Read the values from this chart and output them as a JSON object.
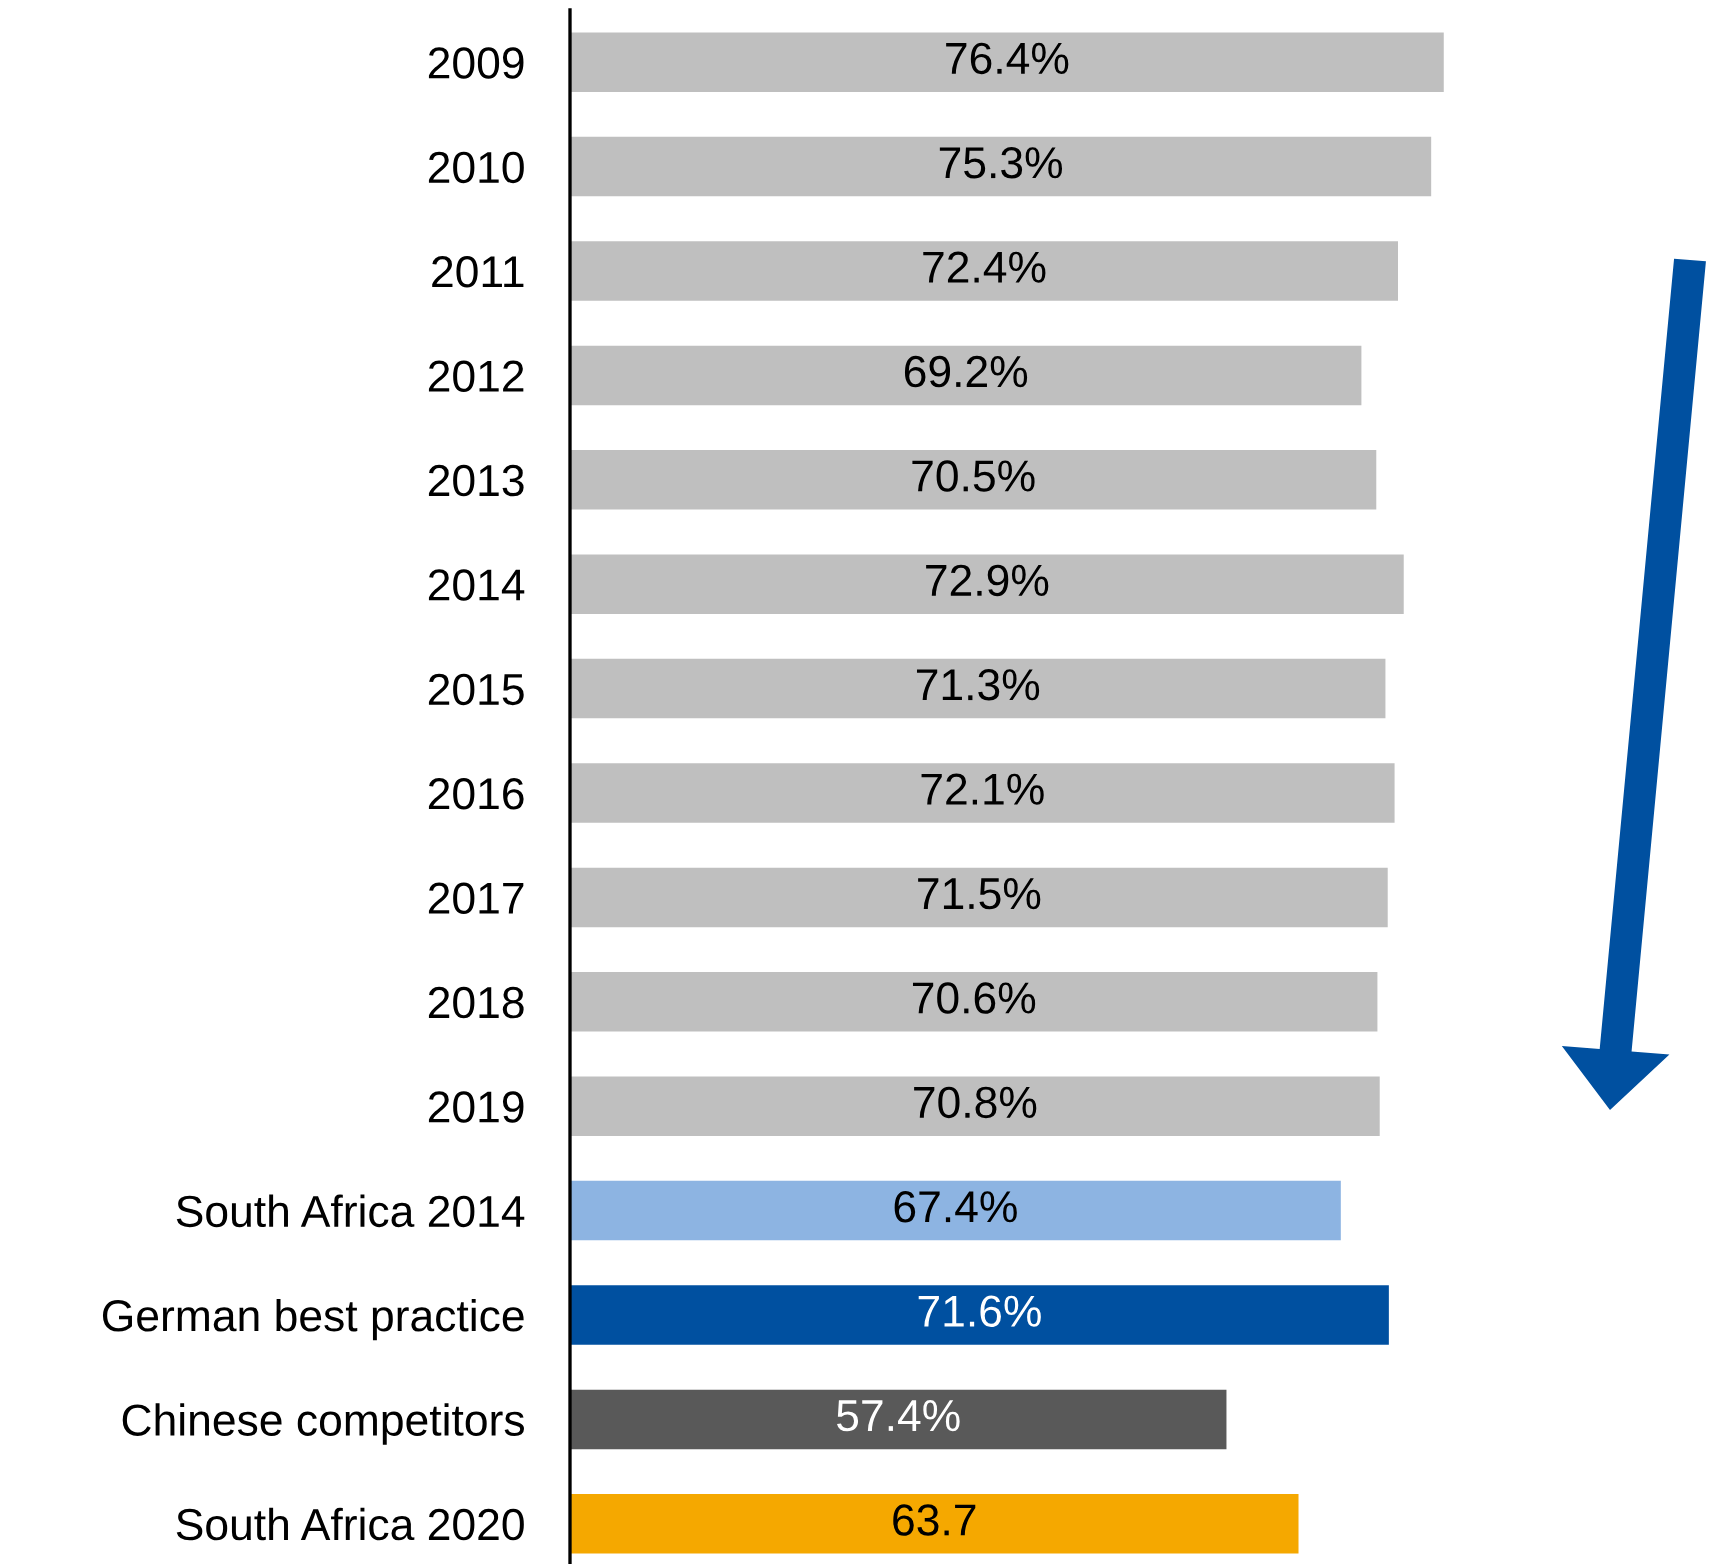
{
  "chart_data": {
    "type": "bar",
    "orientation": "horizontal",
    "categories": [
      "2009",
      "2010",
      "2011",
      "2012",
      "2013",
      "2014",
      "2015",
      "2016",
      "2017",
      "2018",
      "2019",
      "South Africa 2014",
      "German best practice",
      "Chinese competitors",
      "South Africa 2020"
    ],
    "values": [
      76.4,
      75.3,
      72.4,
      69.2,
      70.5,
      72.9,
      71.3,
      72.1,
      71.5,
      70.6,
      70.8,
      67.4,
      71.6,
      57.4,
      63.7
    ],
    "colors": [
      "#bfbfbf",
      "#bfbfbf",
      "#bfbfbf",
      "#bfbfbf",
      "#bfbfbf",
      "#bfbfbf",
      "#bfbfbf",
      "#bfbfbf",
      "#bfbfbf",
      "#bfbfbf",
      "#bfbfbf",
      "#8db4e2",
      "#0050a0",
      "#595959",
      "#f5a800"
    ],
    "value_labels": [
      "76.4%",
      "75.3%",
      "72.4%",
      "69.2%",
      "70.5%",
      "72.9%",
      "71.3%",
      "72.1%",
      "71.5%",
      "70.6%",
      "70.8%",
      "67.4%",
      "71.6%",
      "57.4%",
      "63.7"
    ],
    "tick_labels": "y",
    "grid": false
  }
}
